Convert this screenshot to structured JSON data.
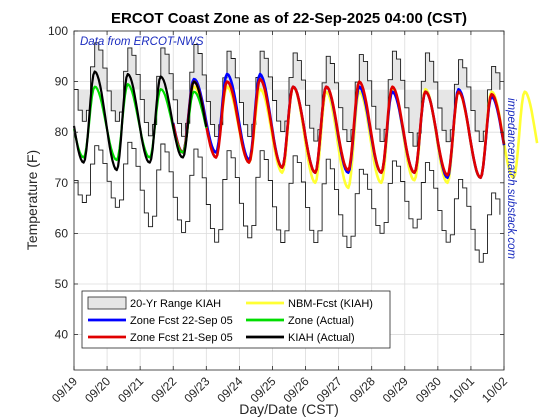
{
  "chart_data": {
    "type": "line",
    "title": "ERCOT Coast Zone as of 22-Sep-2025 04:00 (CST)",
    "annotation": "Data from ERCOT-NWS",
    "side_text": "impedancematch.substack.com",
    "xlabel": "Day/Date (CST)",
    "ylabel": "Temperature (F)",
    "xlim": [
      "09/19",
      "10/02"
    ],
    "ylim": [
      33,
      100
    ],
    "yticks": [
      40,
      50,
      60,
      70,
      80,
      90,
      100
    ],
    "xticks": [
      "09/19",
      "09/20",
      "09/21",
      "09/22",
      "09/23",
      "09/24",
      "09/25",
      "09/26",
      "09/27",
      "09/28",
      "09/29",
      "09/30",
      "10/01",
      "10/02"
    ],
    "grid": true,
    "legend_position": "bottom-left",
    "daily_lows_range": {
      "dates": [
        "09/19",
        "09/20",
        "09/21",
        "09/22",
        "09/23",
        "09/24",
        "09/25",
        "09/26",
        "09/27",
        "09/28",
        "09/29",
        "09/30",
        "10/01"
      ],
      "record_max_of_lows": [
        82,
        82,
        79,
        79,
        79,
        79,
        80,
        78,
        78,
        78,
        77,
        78,
        78
      ],
      "record_min_of_lows": [
        66,
        65,
        61,
        60,
        58,
        59,
        58,
        58,
        57,
        60,
        61,
        58,
        54
      ]
    },
    "daily_highs_range": {
      "dates": [
        "09/19",
        "09/20",
        "09/21",
        "09/22",
        "09/23",
        "09/24",
        "09/25",
        "09/26",
        "09/27",
        "09/28",
        "09/29",
        "09/30",
        "10/01"
      ],
      "record_max_of_highs": [
        98,
        97,
        96,
        98,
        96,
        96,
        96,
        95,
        95,
        96,
        96,
        95,
        93
      ],
      "record_min_of_highs": [
        77,
        78,
        78,
        77,
        76,
        77,
        75,
        76,
        72,
        74,
        75,
        72,
        68
      ]
    },
    "series": [
      {
        "name": "20-Yr Range KIAH",
        "color": "#e6e6e6",
        "kind": "band"
      },
      {
        "name": "Zone Fcst 22-Sep 05",
        "color": "#0000ff",
        "x": [
          "09/22",
          "09/23",
          "09/24",
          "09/25",
          "09/26",
          "09/27",
          "09/28",
          "09/29",
          "09/30",
          "10/01"
        ],
        "highs": [
          90.5,
          91.5,
          91.5,
          89,
          89,
          89,
          88,
          88,
          88.5,
          87
        ],
        "lows": [
          76,
          76,
          74.5,
          73,
          72,
          72,
          72,
          72,
          71,
          71
        ]
      },
      {
        "name": "Zone Fcst 21-Sep 05",
        "color": "#e00000",
        "x": [
          "09/22",
          "09/23",
          "09/24",
          "09/25",
          "09/26",
          "09/27",
          "09/28",
          "09/29",
          "09/30",
          "10/01"
        ],
        "highs": [
          90,
          90,
          90.5,
          89,
          89,
          90,
          89,
          88,
          88,
          87.5
        ],
        "lows": [
          76,
          75,
          74,
          73,
          72,
          72.5,
          72,
          72,
          71.5,
          71
        ]
      },
      {
        "name": "NBM-Fcst (KIAH)",
        "color": "#ffff33",
        "x": [
          "09/22",
          "09/23",
          "09/24",
          "09/25",
          "09/26",
          "09/27",
          "09/28",
          "09/29",
          "09/30",
          "10/01",
          "10/02"
        ],
        "highs": [
          89,
          89,
          88.5,
          89,
          88,
          88,
          88.5,
          88.5,
          88,
          88,
          88
        ],
        "lows": [
          76,
          76,
          74,
          72,
          70,
          69,
          70,
          70.5,
          70,
          71,
          71
        ]
      },
      {
        "name": "Zone (Actual)",
        "color": "#00dd00",
        "x": [
          "09/19",
          "09/20",
          "09/21",
          "09/22"
        ],
        "highs": [
          89,
          89.5,
          88.5,
          88
        ],
        "lows": [
          75,
          74.5,
          75,
          76
        ]
      },
      {
        "name": "KIAH (Actual)",
        "color": "#000000",
        "x": [
          "09/19",
          "09/20",
          "09/21",
          "09/22"
        ],
        "highs": [
          92,
          91.5,
          91,
          90
        ],
        "lows": [
          74,
          72.5,
          74,
          75
        ]
      }
    ]
  }
}
